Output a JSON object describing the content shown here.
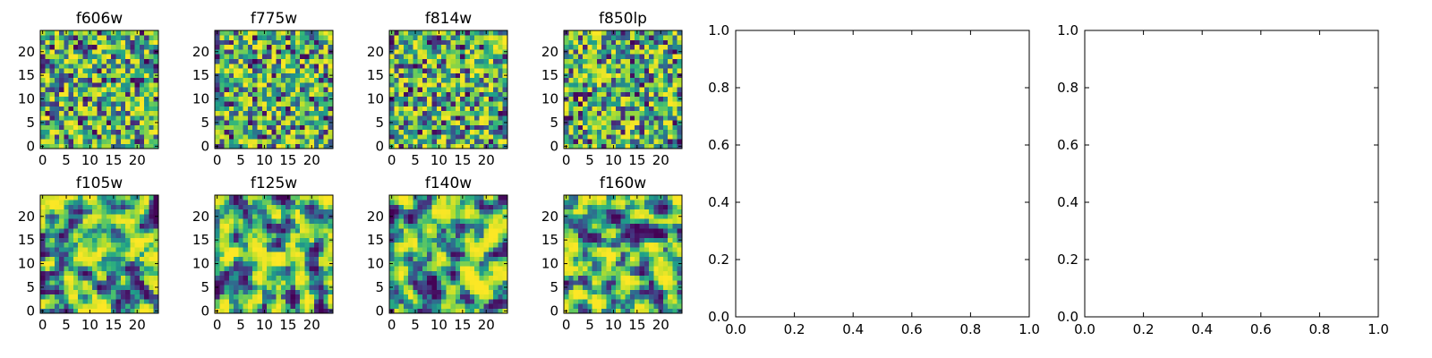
{
  "figure": {
    "background": "#ffffff",
    "colormap": "viridis"
  },
  "chart_data": [
    {
      "type": "heatmap",
      "title": "f606w",
      "seed": 11,
      "smooth": false,
      "shape": [
        25,
        25
      ],
      "xticks": [
        "0",
        "5",
        "10",
        "15",
        "20"
      ],
      "yticks": [
        "0",
        "5",
        "10",
        "15",
        "20"
      ],
      "xlim": [
        -0.5,
        24.5
      ],
      "ylim": [
        -0.5,
        24.5
      ]
    },
    {
      "type": "heatmap",
      "title": "f775w",
      "seed": 23,
      "smooth": false,
      "shape": [
        25,
        25
      ],
      "xticks": [
        "0",
        "5",
        "10",
        "15",
        "20"
      ],
      "yticks": [
        "0",
        "5",
        "10",
        "15",
        "20"
      ],
      "xlim": [
        -0.5,
        24.5
      ],
      "ylim": [
        -0.5,
        24.5
      ]
    },
    {
      "type": "heatmap",
      "title": "f814w",
      "seed": 37,
      "smooth": false,
      "shape": [
        25,
        25
      ],
      "xticks": [
        "0",
        "5",
        "10",
        "15",
        "20"
      ],
      "yticks": [
        "0",
        "5",
        "10",
        "15",
        "20"
      ],
      "xlim": [
        -0.5,
        24.5
      ],
      "ylim": [
        -0.5,
        24.5
      ]
    },
    {
      "type": "heatmap",
      "title": "f850lp",
      "seed": 41,
      "smooth": false,
      "shape": [
        25,
        25
      ],
      "xticks": [
        "0",
        "5",
        "10",
        "15",
        "20"
      ],
      "yticks": [
        "0",
        "5",
        "10",
        "15",
        "20"
      ],
      "xlim": [
        -0.5,
        24.5
      ],
      "ylim": [
        -0.5,
        24.5
      ]
    },
    {
      "type": "heatmap",
      "title": "f105w",
      "seed": 53,
      "smooth": true,
      "shape": [
        25,
        25
      ],
      "xticks": [
        "0",
        "5",
        "10",
        "15",
        "20"
      ],
      "yticks": [
        "0",
        "5",
        "10",
        "15",
        "20"
      ],
      "xlim": [
        -0.5,
        24.5
      ],
      "ylim": [
        -0.5,
        24.5
      ]
    },
    {
      "type": "heatmap",
      "title": "f125w",
      "seed": 67,
      "smooth": true,
      "shape": [
        25,
        25
      ],
      "xticks": [
        "0",
        "5",
        "10",
        "15",
        "20"
      ],
      "yticks": [
        "0",
        "5",
        "10",
        "15",
        "20"
      ],
      "xlim": [
        -0.5,
        24.5
      ],
      "ylim": [
        -0.5,
        24.5
      ]
    },
    {
      "type": "heatmap",
      "title": "f140w",
      "seed": 79,
      "smooth": true,
      "shape": [
        25,
        25
      ],
      "xticks": [
        "0",
        "5",
        "10",
        "15",
        "20"
      ],
      "yticks": [
        "0",
        "5",
        "10",
        "15",
        "20"
      ],
      "xlim": [
        -0.5,
        24.5
      ],
      "ylim": [
        -0.5,
        24.5
      ]
    },
    {
      "type": "heatmap",
      "title": "f160w",
      "seed": 97,
      "smooth": true,
      "shape": [
        25,
        25
      ],
      "xticks": [
        "0",
        "5",
        "10",
        "15",
        "20"
      ],
      "yticks": [
        "0",
        "5",
        "10",
        "15",
        "20"
      ],
      "xlim": [
        -0.5,
        24.5
      ],
      "ylim": [
        -0.5,
        24.5
      ]
    },
    {
      "type": "scatter",
      "title": "",
      "x": [],
      "y": [],
      "xlim": [
        0.0,
        1.0
      ],
      "ylim": [
        0.0,
        1.0
      ],
      "xticks": [
        "0.0",
        "0.2",
        "0.4",
        "0.6",
        "0.8",
        "1.0"
      ],
      "yticks": [
        "0.0",
        "0.2",
        "0.4",
        "0.6",
        "0.8",
        "1.0"
      ]
    },
    {
      "type": "scatter",
      "title": "",
      "x": [],
      "y": [],
      "xlim": [
        0.0,
        1.0
      ],
      "ylim": [
        0.0,
        1.0
      ],
      "xticks": [
        "0.0",
        "0.2",
        "0.4",
        "0.6",
        "0.8",
        "1.0"
      ],
      "yticks": [
        "0.0",
        "0.2",
        "0.4",
        "0.6",
        "0.8",
        "1.0"
      ]
    }
  ]
}
